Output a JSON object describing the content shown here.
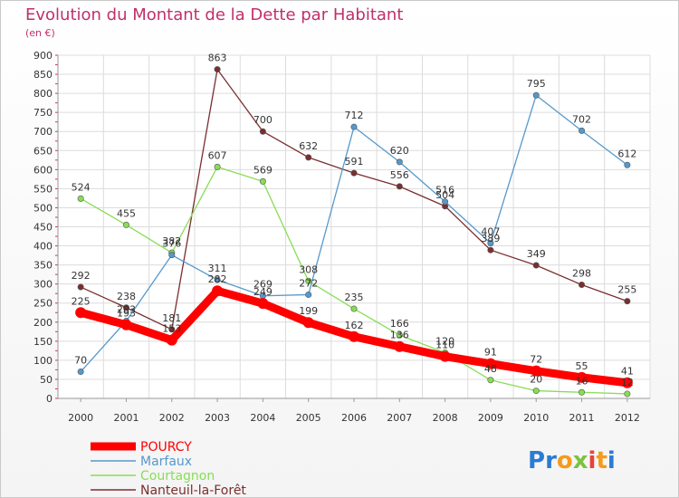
{
  "chart_data": {
    "type": "line",
    "title": "Evolution du Montant de la Dette par Habitant",
    "subtitle": "(en €)",
    "ylim": [
      0,
      900
    ],
    "yticks": [
      "0",
      "50",
      "100",
      "150",
      "200",
      "250",
      "300",
      "350",
      "400",
      "450",
      "500",
      "550",
      "600",
      "650",
      "700",
      "750",
      "800",
      "850",
      "900"
    ],
    "categories": [
      "2000",
      "2001",
      "2002",
      "2003",
      "2004",
      "2005",
      "2006",
      "2007",
      "2008",
      "2009",
      "2010",
      "2011",
      "2012"
    ],
    "grid": true,
    "legend_position": "bottom-left",
    "series": [
      {
        "name": "POURCY",
        "color": "#ff0000",
        "values": [
          225,
          193,
          153,
          282,
          249,
          199,
          162,
          136,
          110,
          91,
          72,
          55,
          41
        ]
      },
      {
        "name": "Marfaux",
        "color": "#5599cc",
        "values": [
          70,
          203,
          376,
          311,
          269,
          272,
          712,
          620,
          516,
          407,
          795,
          702,
          612
        ]
      },
      {
        "name": "Courtagnon",
        "color": "#88dd55",
        "values": [
          524,
          455,
          382,
          607,
          569,
          308,
          235,
          166,
          120,
          48,
          20,
          16,
          12
        ]
      },
      {
        "name": "Nanteuil-la-Forêt",
        "color": "#7a2e2e",
        "values": [
          292,
          238,
          181,
          863,
          700,
          632,
          591,
          556,
          504,
          389,
          349,
          298,
          255
        ]
      }
    ]
  },
  "logo": {
    "text": "Proxiti",
    "letters": [
      "P",
      "r",
      "o",
      "x",
      "i",
      "t",
      "i"
    ],
    "colors": [
      "#2a7bd4",
      "#2a7bd4",
      "#f59a1b",
      "#7cc242",
      "#e8423a",
      "#f59a1b",
      "#2a7bd4"
    ]
  }
}
